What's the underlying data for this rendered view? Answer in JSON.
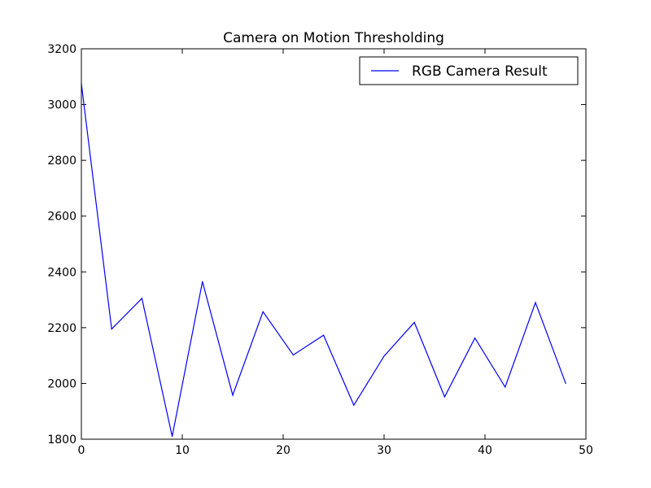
{
  "chart_data": {
    "type": "line",
    "title": "Camera on Motion Thresholding",
    "xlabel": "",
    "ylabel": "",
    "xlim": [
      0,
      50
    ],
    "ylim": [
      1800,
      3200
    ],
    "xticks": [
      0,
      10,
      20,
      30,
      40,
      50
    ],
    "yticks": [
      1800,
      2000,
      2200,
      2400,
      2600,
      2800,
      3000,
      3200
    ],
    "grid": false,
    "legend_position": "top-right",
    "series": [
      {
        "name": "RGB Camera Result",
        "color": "#0000ff",
        "x": [
          0,
          3,
          6,
          9,
          12,
          15,
          18,
          21,
          24,
          27,
          30,
          33,
          36,
          39,
          42,
          45,
          48
        ],
        "y": [
          3075,
          2195,
          2305,
          1810,
          2365,
          1958,
          2257,
          2102,
          2173,
          1922,
          2098,
          2219,
          1952,
          2163,
          1987,
          2290,
          2000
        ]
      }
    ]
  }
}
